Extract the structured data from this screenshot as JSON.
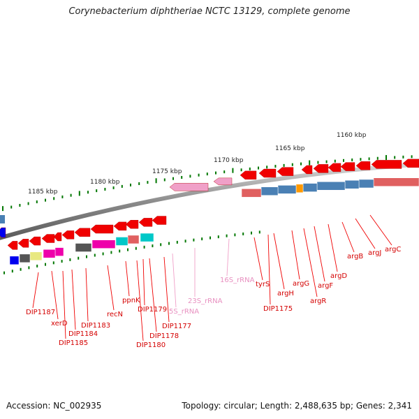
{
  "title": "Corynebacterium diphtheriae NCTC 13129, complete genome",
  "footer": {
    "accession": "Accession: NC_002935",
    "summary": "Topology: circular; Length: 2,488,635 bp; Genes: 2,341"
  },
  "scale": {
    "tick_labels": [
      "1160 kbp",
      "1165 kbp",
      "1170 kbp",
      "1175 kbp",
      "1180 kbp",
      "1185 kbp"
    ]
  },
  "colors": {
    "cds": "#f00000",
    "rrna": "#f0a0c8",
    "trna": "#ff66cc",
    "track_blue": "#4a80b4",
    "track_salmon": "#e06060",
    "track_gray": "#555555",
    "track_magenta": "#ee00aa",
    "track_cyan": "#00c8c8",
    "track_yellow": "#e8e880",
    "track_orange": "#ff9900",
    "track_darkblue": "#0000ee",
    "scale_dots": "#007700",
    "backbone": "#909090"
  },
  "gene_labels": [
    {
      "text": "argC",
      "color": "red"
    },
    {
      "text": "argJ",
      "color": "red"
    },
    {
      "text": "argB",
      "color": "red"
    },
    {
      "text": "argD",
      "color": "red"
    },
    {
      "text": "argF",
      "color": "red"
    },
    {
      "text": "argR",
      "color": "red"
    },
    {
      "text": "argG",
      "color": "red"
    },
    {
      "text": "argH",
      "color": "red"
    },
    {
      "text": "tyrS",
      "color": "red"
    },
    {
      "text": "DIP1175",
      "color": "red"
    },
    {
      "text": "16S_rRNA",
      "color": "pink"
    },
    {
      "text": "23S_rRNA",
      "color": "pink"
    },
    {
      "text": "5S_rRNA",
      "color": "pink"
    },
    {
      "text": "DIP1177",
      "color": "red"
    },
    {
      "text": "DIP1178",
      "color": "red"
    },
    {
      "text": "DIP1179",
      "color": "red"
    },
    {
      "text": "DIP1180",
      "color": "red"
    },
    {
      "text": "ppnK",
      "color": "red"
    },
    {
      "text": "recN",
      "color": "red"
    },
    {
      "text": "DIP1183",
      "color": "red"
    },
    {
      "text": "DIP1184",
      "color": "red"
    },
    {
      "text": "DIP1185",
      "color": "red"
    },
    {
      "text": "xerD",
      "color": "red"
    },
    {
      "text": "DIP1187",
      "color": "red"
    }
  ]
}
